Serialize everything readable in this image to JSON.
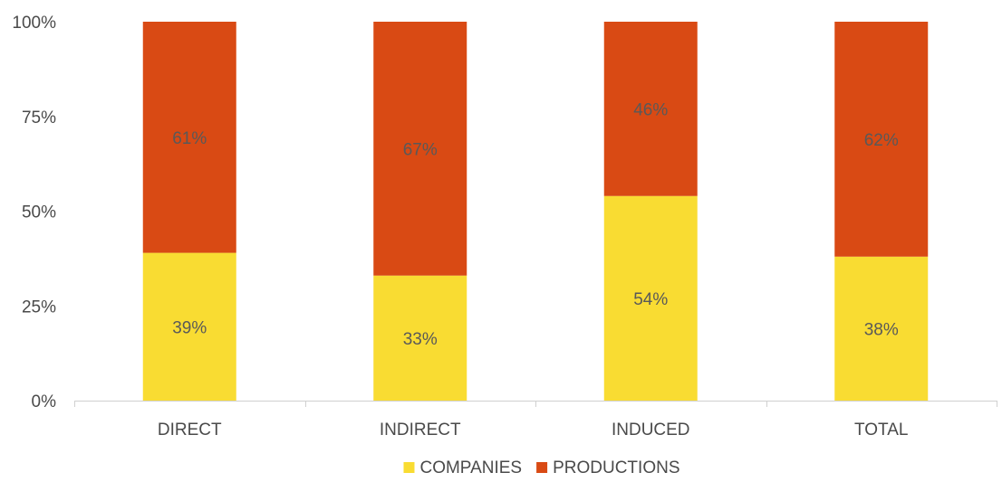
{
  "chart_data": {
    "type": "bar",
    "stacked": true,
    "percent": true,
    "categories": [
      "DIRECT",
      "INDIRECT",
      "INDUCED",
      "TOTAL"
    ],
    "series": [
      {
        "name": "COMPANIES",
        "values": [
          39,
          33,
          54,
          38
        ],
        "color": "#F9DC32",
        "labels": [
          "39%",
          "33%",
          "54%",
          "38%"
        ]
      },
      {
        "name": "PRODUCTIONS",
        "values": [
          61,
          67,
          46,
          62
        ],
        "color": "#D94A14",
        "labels": [
          "61%",
          "67%",
          "46%",
          "62%"
        ]
      }
    ],
    "ylim": [
      0,
      100
    ],
    "yticks": [
      0,
      25,
      50,
      75,
      100
    ],
    "ytick_labels": [
      "0%",
      "25%",
      "50%",
      "75%",
      "100%"
    ],
    "title": "",
    "xlabel": "",
    "ylabel": "",
    "grid": false,
    "legend": "bottom-center",
    "axis_color": "#d0d0d0",
    "label_color": "#4a4a4a",
    "data_label_color": "#595959"
  }
}
